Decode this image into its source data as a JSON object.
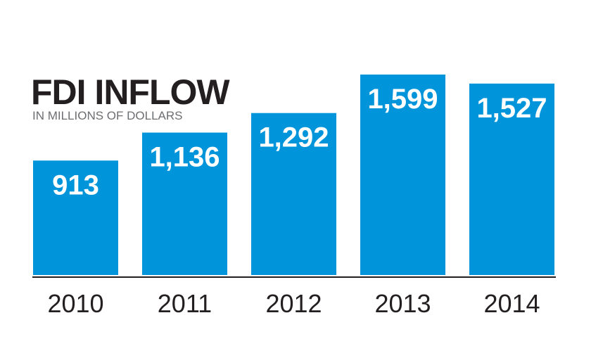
{
  "chart_data": {
    "type": "bar",
    "title": "FDI INFLOW",
    "subtitle": "IN MILLIONS OF DOLLARS",
    "categories": [
      "2010",
      "2011",
      "2012",
      "2013",
      "2014"
    ],
    "values": [
      913,
      1136,
      1292,
      1599,
      1527
    ],
    "value_labels": [
      "913",
      "1,136",
      "1,292",
      "1,599",
      "1,527"
    ],
    "xlabel": "",
    "ylabel": "",
    "ylim": [
      0,
      1599
    ],
    "grid": false,
    "legend": "none",
    "colors": {
      "bar": "#0095da",
      "baseline": "#231f20",
      "title": "#231f20",
      "subtitle": "#6d6e71"
    }
  }
}
